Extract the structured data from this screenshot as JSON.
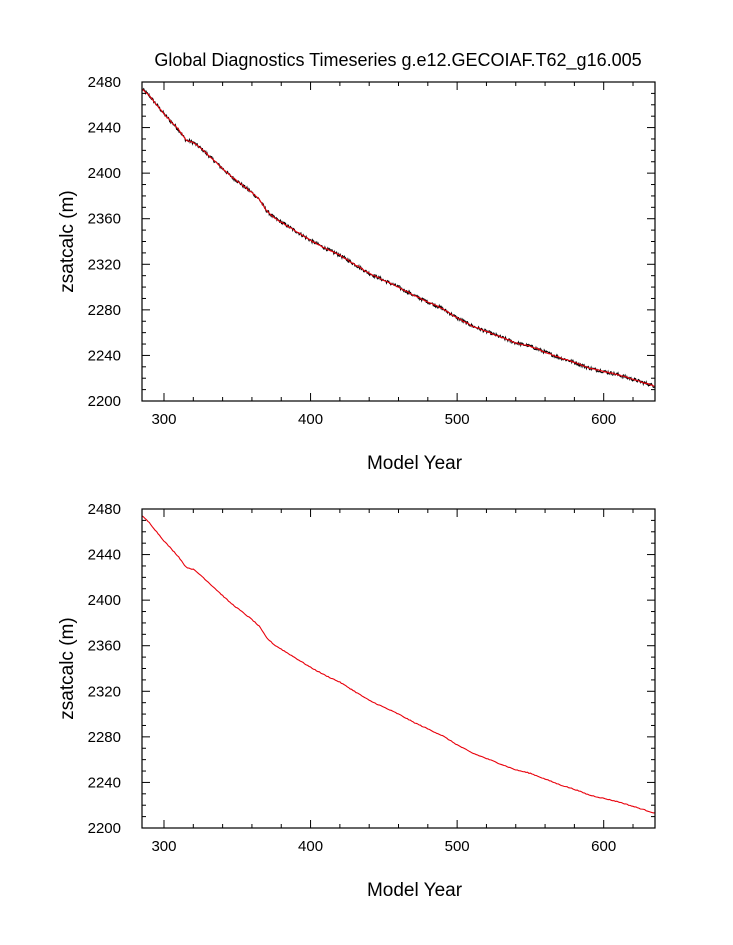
{
  "title": "Global Diagnostics Timeseries g.e12.GECOIAF.T62_g16.005",
  "colors": {
    "raw_line": "#000000",
    "smooth_line": "#e8000b",
    "frame": "#000000",
    "background": "#ffffff"
  },
  "chart_data": [
    {
      "type": "line",
      "xlabel": "Model Year",
      "ylabel": "zsatcalc (m)",
      "xlim": [
        285,
        635
      ],
      "ylim": [
        2200,
        2480
      ],
      "xticks": [
        300,
        400,
        500,
        600
      ],
      "yticks": [
        2200,
        2240,
        2280,
        2320,
        2360,
        2400,
        2440,
        2480
      ],
      "grid": false,
      "noisy": true,
      "series": [
        {
          "color": "#000000",
          "x": [
            285,
            290,
            295,
            300,
            305,
            310,
            315,
            320,
            325,
            330,
            335,
            340,
            345,
            350,
            355,
            360,
            365,
            370,
            375,
            380,
            385,
            390,
            395,
            400,
            410,
            420,
            430,
            440,
            450,
            460,
            470,
            480,
            490,
            500,
            510,
            520,
            530,
            540,
            550,
            560,
            570,
            580,
            590,
            600,
            610,
            620,
            630,
            635
          ],
          "values": [
            2474,
            2468,
            2460,
            2452,
            2445,
            2438,
            2429,
            2427,
            2422,
            2416,
            2410,
            2404,
            2398,
            2393,
            2388,
            2383,
            2377,
            2367,
            2361,
            2357,
            2353,
            2349,
            2345,
            2341,
            2334,
            2328,
            2320,
            2312,
            2306,
            2300,
            2293,
            2287,
            2281,
            2273,
            2266,
            2261,
            2256,
            2251,
            2248,
            2243,
            2238,
            2234,
            2229,
            2226,
            2223,
            2219,
            2215,
            2213
          ]
        },
        {
          "color": "#e8000b",
          "x": [
            285,
            290,
            295,
            300,
            305,
            310,
            315,
            320,
            325,
            330,
            335,
            340,
            345,
            350,
            355,
            360,
            365,
            370,
            375,
            380,
            385,
            390,
            395,
            400,
            410,
            420,
            430,
            440,
            450,
            460,
            470,
            480,
            490,
            500,
            510,
            520,
            530,
            540,
            550,
            560,
            570,
            580,
            590,
            600,
            610,
            620,
            630,
            635
          ],
          "values": [
            2474,
            2468,
            2460,
            2452,
            2445,
            2438,
            2429,
            2427,
            2422,
            2416,
            2410,
            2404,
            2398,
            2393,
            2388,
            2383,
            2377,
            2367,
            2361,
            2357,
            2353,
            2349,
            2345,
            2341,
            2334,
            2328,
            2320,
            2312,
            2306,
            2300,
            2293,
            2287,
            2281,
            2273,
            2266,
            2261,
            2256,
            2251,
            2248,
            2243,
            2238,
            2234,
            2229,
            2226,
            2223,
            2219,
            2215,
            2213
          ]
        }
      ]
    },
    {
      "type": "line",
      "xlabel": "Model Year",
      "ylabel": "zsatcalc (m)",
      "xlim": [
        285,
        635
      ],
      "ylim": [
        2200,
        2480
      ],
      "xticks": [
        300,
        400,
        500,
        600
      ],
      "yticks": [
        2200,
        2240,
        2280,
        2320,
        2360,
        2400,
        2440,
        2480
      ],
      "grid": false,
      "noisy": false,
      "series": [
        {
          "color": "#e8000b",
          "x": [
            285,
            290,
            295,
            300,
            305,
            310,
            315,
            320,
            325,
            330,
            335,
            340,
            345,
            350,
            355,
            360,
            365,
            370,
            375,
            380,
            385,
            390,
            395,
            400,
            410,
            420,
            430,
            440,
            450,
            460,
            470,
            480,
            490,
            500,
            510,
            520,
            530,
            540,
            550,
            560,
            570,
            580,
            590,
            600,
            610,
            620,
            630,
            635
          ],
          "values": [
            2474,
            2468,
            2460,
            2452,
            2445,
            2438,
            2429,
            2427,
            2422,
            2416,
            2410,
            2404,
            2398,
            2393,
            2388,
            2383,
            2377,
            2367,
            2361,
            2357,
            2353,
            2349,
            2345,
            2341,
            2334,
            2328,
            2320,
            2312,
            2306,
            2300,
            2293,
            2287,
            2281,
            2273,
            2266,
            2261,
            2256,
            2251,
            2248,
            2243,
            2238,
            2234,
            2229,
            2226,
            2223,
            2219,
            2215,
            2213
          ]
        }
      ]
    }
  ]
}
